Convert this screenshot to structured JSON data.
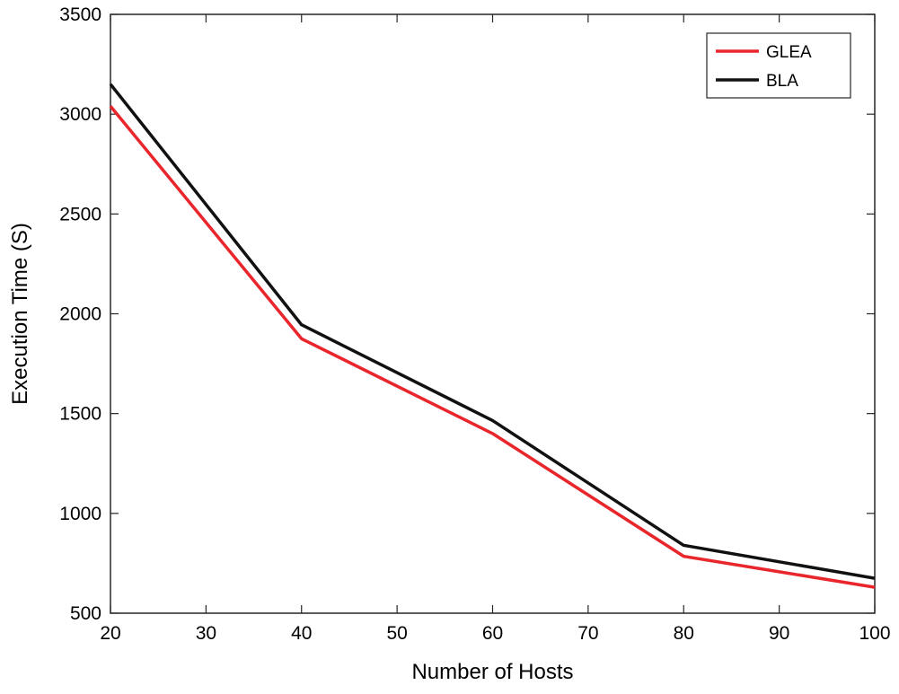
{
  "chart_data": {
    "type": "line",
    "title": "",
    "xlabel": "Number of Hosts",
    "ylabel": "Execution Time (S)",
    "x": [
      20,
      40,
      60,
      80,
      100
    ],
    "xlim": [
      20,
      100
    ],
    "ylim": [
      500,
      3500
    ],
    "xticks": [
      20,
      30,
      40,
      50,
      60,
      70,
      80,
      90,
      100
    ],
    "yticks": [
      500,
      1000,
      1500,
      2000,
      2500,
      3000,
      3500
    ],
    "grid": false,
    "legend_position": "top-right",
    "series": [
      {
        "name": "GLEA",
        "color": "#e8262b",
        "values": [
          3040,
          1875,
          1400,
          785,
          630
        ]
      },
      {
        "name": "BLA",
        "color": "#111111",
        "values": [
          3150,
          1945,
          1465,
          840,
          675
        ]
      }
    ]
  }
}
